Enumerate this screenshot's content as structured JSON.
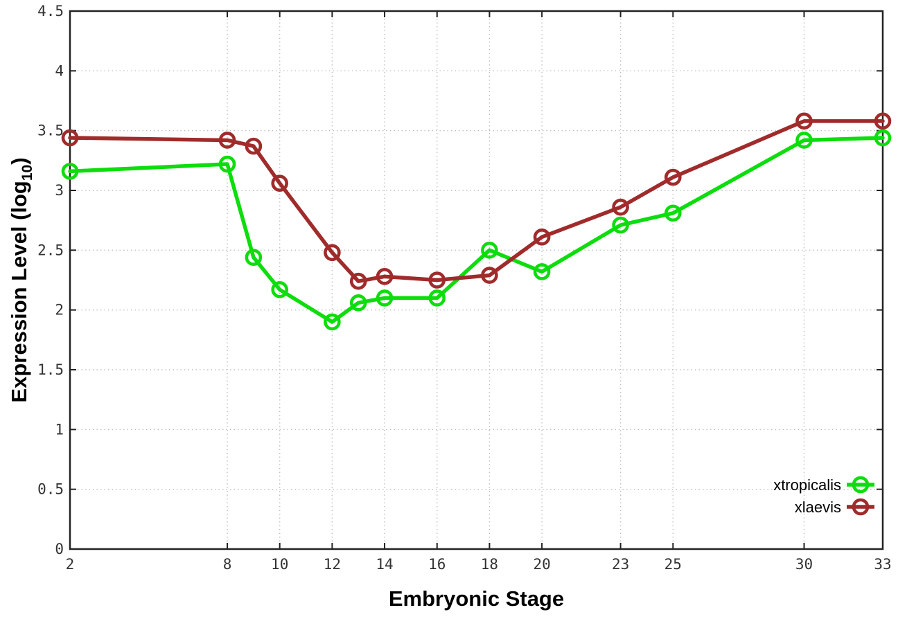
{
  "chart_data": {
    "type": "line",
    "title": "",
    "xlabel": "Embryonic Stage",
    "ylabel": {
      "main": "Expression Level (log",
      "sub": "10",
      "close": ")"
    },
    "x": [
      2,
      8,
      9,
      10,
      12,
      13,
      14,
      16,
      18,
      20,
      23,
      25,
      30,
      33
    ],
    "series": [
      {
        "name": "xtropicalis",
        "color": "#0ddd0d",
        "values": [
          3.16,
          3.22,
          2.44,
          2.17,
          1.9,
          2.06,
          2.1,
          2.1,
          2.5,
          2.32,
          2.71,
          2.81,
          3.42,
          3.44
        ]
      },
      {
        "name": "xlaevis",
        "color": "#a02b2b",
        "values": [
          3.44,
          3.42,
          3.37,
          3.06,
          2.48,
          2.24,
          2.28,
          2.25,
          2.29,
          2.61,
          2.86,
          3.11,
          3.58,
          3.58
        ]
      }
    ],
    "xlim": [
      2,
      33
    ],
    "ylim": [
      0,
      4.5
    ],
    "xticks": [
      2,
      8,
      10,
      12,
      14,
      16,
      18,
      20,
      23,
      25,
      30,
      33
    ],
    "xtick_labels": [
      "2",
      "8",
      "10",
      "12",
      "14",
      "16",
      "18",
      "20",
      "23",
      "25",
      "30",
      "33"
    ],
    "yticks": [
      0,
      0.5,
      1,
      1.5,
      2,
      2.5,
      3,
      3.5,
      4,
      4.5
    ],
    "ytick_labels": [
      "0",
      "0.5",
      "1",
      "1.5",
      "2",
      "2.5",
      "3",
      "3.5",
      "4",
      "4.5"
    ],
    "grid": true,
    "grid_style": "dotted",
    "legend_position": "bottom-right",
    "legend_frame": false,
    "marker": "open-circle"
  },
  "colors": {
    "background": "#ffffff",
    "axis": "#222222",
    "grid": "#bfbfbf",
    "tick_text": "#333333",
    "label_text": "#000000"
  }
}
